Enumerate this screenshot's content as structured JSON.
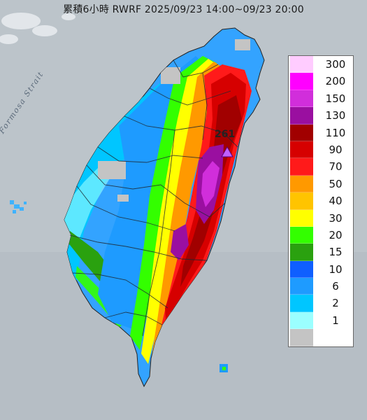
{
  "title": "累積6小時 RWRF 2025/09/23 14:00~09/23 20:00",
  "strait_label": "Formosa Strait",
  "peak_value": "261",
  "legend": [
    {
      "label": "300",
      "color": "#ffccff"
    },
    {
      "label": "200",
      "color": "#ff00ff"
    },
    {
      "label": "150",
      "color": "#d12edb"
    },
    {
      "label": "130",
      "color": "#9a0fa0"
    },
    {
      "label": "110",
      "color": "#a10000"
    },
    {
      "label": "90",
      "color": "#d60000"
    },
    {
      "label": "70",
      "color": "#ff1a1a"
    },
    {
      "label": "50",
      "color": "#ff9900"
    },
    {
      "label": "40",
      "color": "#ffc400"
    },
    {
      "label": "30",
      "color": "#ffff00"
    },
    {
      "label": "20",
      "color": "#33ff00"
    },
    {
      "label": "15",
      "color": "#2aa10f"
    },
    {
      "label": "10",
      "color": "#0f5fff"
    },
    {
      "label": "6",
      "color": "#1e9bff"
    },
    {
      "label": "2",
      "color": "#00c6ff"
    },
    {
      "label": "1",
      "color": "#9bffff"
    },
    {
      "label": "",
      "color": "#c4c4c4"
    }
  ]
}
